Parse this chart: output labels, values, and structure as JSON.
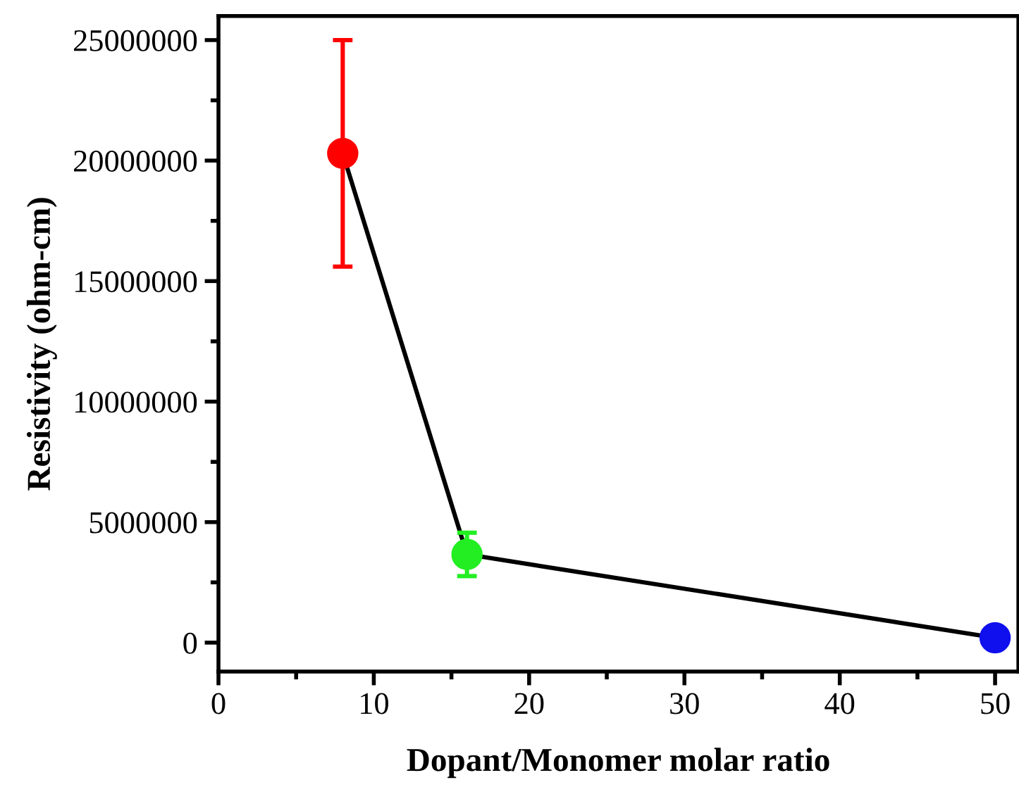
{
  "chart_data": {
    "type": "line",
    "xlabel": "Dopant/Monomer molar ratio",
    "ylabel": "Resistivity (ohm-cm)",
    "x": [
      8,
      16,
      50
    ],
    "series": [
      {
        "color": "#000000",
        "colors": [
          "#ff0000",
          "#22ee22",
          "#1010ee"
        ],
        "values": [
          20300000,
          3660000,
          200000
        ],
        "errors": [
          4700000,
          900000,
          null
        ]
      }
    ],
    "xlim": [
      0,
      51.5
    ],
    "xticks": [
      0,
      10,
      20,
      30,
      40,
      50
    ],
    "ylim": [
      -1200000,
      26000000
    ],
    "yticks": [
      0,
      5000000,
      10000000,
      15000000,
      20000000,
      25000000
    ],
    "marker": "circle",
    "line_style": "solid",
    "grid": false,
    "legend": false
  }
}
